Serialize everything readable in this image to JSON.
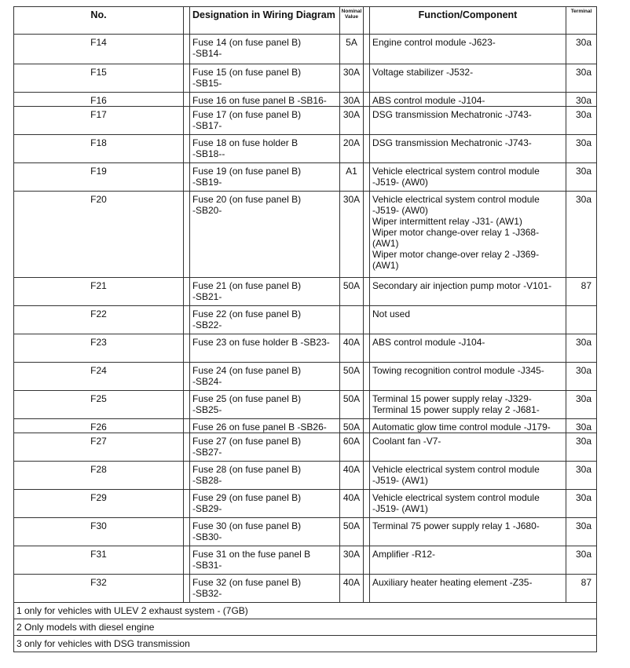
{
  "header": {
    "no": "No.",
    "designation": "Designation in Wiring Diagram",
    "nominal_value": "Nominal Value",
    "function": "Function/Component",
    "terminal": "Terminal"
  },
  "rows": [
    {
      "no": "F14",
      "designation": "Fuse 14 (on fuse panel B)\n-SB14-",
      "value": "5A",
      "function": "Engine control module -J623-",
      "terminal": "30a"
    },
    {
      "no": "F15",
      "designation": "Fuse 15 (on fuse panel B)\n-SB15-",
      "value": "30A",
      "function": "Voltage stabilizer -J532-",
      "terminal": "30a"
    },
    {
      "no": "F16",
      "designation": "Fuse 16 on fuse panel B -SB16-",
      "value": "30A",
      "function": "ABS control module -J104-",
      "terminal": "30a"
    },
    {
      "no": "F17",
      "designation": "Fuse 17 (on fuse panel B)\n-SB17-",
      "value": "30A",
      "function": "DSG transmission Mechatronic -J743-",
      "terminal": "30a"
    },
    {
      "no": "F18",
      "designation": "Fuse 18 on fuse holder B\n-SB18--",
      "value": "20A",
      "function": "DSG transmission Mechatronic -J743-",
      "terminal": "30a"
    },
    {
      "no": "F19",
      "designation": "Fuse 19 (on fuse panel B)\n-SB19-",
      "value": "A1",
      "function": "Vehicle electrical system control module\n-J519- (AW0)",
      "terminal": "30a"
    },
    {
      "no": "F20",
      "designation": "Fuse 20 (on fuse panel B)\n-SB20-",
      "value": "30A",
      "function": "Vehicle electrical system control module\n-J519- (AW0)\nWiper intermittent relay -J31- (AW1)\nWiper motor change-over relay 1 -J368-\n(AW1)\nWiper motor change-over relay 2 -J369-\n(AW1)",
      "terminal": "30a"
    },
    {
      "no": "F21",
      "designation": "Fuse 21 (on fuse panel B)\n-SB21-",
      "value": "50A",
      "function": "Secondary air injection pump motor -V101-",
      "terminal": "87"
    },
    {
      "no": "F22",
      "designation": "Fuse 22 (on fuse panel B)\n-SB22-",
      "value": "",
      "function": "Not used",
      "terminal": ""
    },
    {
      "no": "F23",
      "designation": "Fuse 23 on fuse holder B -SB23-",
      "value": "40A",
      "function": "ABS control module -J104-",
      "terminal": "30a"
    },
    {
      "no": "F24",
      "designation": "Fuse 24 (on fuse panel B)\n-SB24-",
      "value": "50A",
      "function": "Towing recognition control module -J345-",
      "terminal": "30a"
    },
    {
      "no": "F25",
      "designation": "Fuse 25 (on fuse panel B)\n-SB25-",
      "value": "50A",
      "function": "Terminal 15 power supply relay -J329-\nTerminal 15 power supply relay 2 -J681-",
      "terminal": "30a"
    },
    {
      "no": "F26",
      "designation": "Fuse 26 on fuse panel B -SB26-",
      "value": "50A",
      "function": "Automatic glow time control module -J179-",
      "terminal": "30a"
    },
    {
      "no": "F27",
      "designation": "Fuse 27 (on fuse panel B)\n-SB27-",
      "value": "60A",
      "function": "Coolant fan -V7-",
      "terminal": "30a"
    },
    {
      "no": "F28",
      "designation": "Fuse 28 (on fuse panel B)\n-SB28-",
      "value": "40A",
      "function": "Vehicle electrical system control module\n-J519- (AW1)",
      "terminal": "30a"
    },
    {
      "no": "F29",
      "designation": "Fuse 29 (on fuse panel B)\n-SB29-",
      "value": "40A",
      "function": "Vehicle electrical system control module\n-J519- (AW1)",
      "terminal": "30a"
    },
    {
      "no": "F30",
      "designation": "Fuse 30 (on fuse panel B)\n-SB30-",
      "value": "50A",
      "function": "Terminal 75 power supply relay 1 -J680-",
      "terminal": "30a"
    },
    {
      "no": "F31",
      "designation": "Fuse 31 on the fuse panel B\n-SB31-",
      "value": "30A",
      "function": "Amplifier -R12-",
      "terminal": "30a"
    },
    {
      "no": "F32",
      "designation": "Fuse 32 (on fuse panel B)\n-SB32-",
      "value": "40A",
      "function": "Auxiliary heater heating element -Z35-",
      "terminal": "87"
    }
  ],
  "footnotes": [
    "1 only for vehicles with ULEV 2 exhaust system - (7GB)",
    "2 Only models with diesel engine",
    "3 only for vehicles with DSG transmission"
  ]
}
